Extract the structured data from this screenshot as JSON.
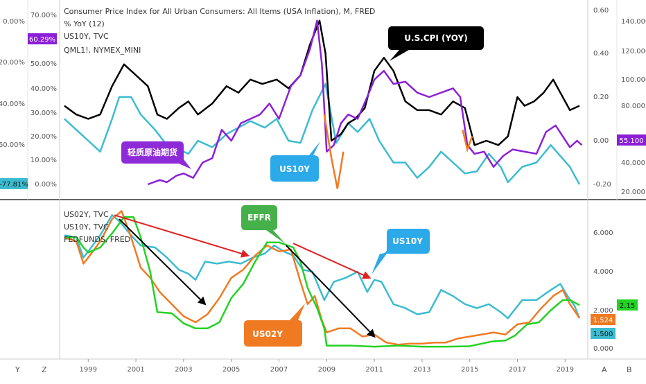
{
  "top_panel": {
    "legend": [
      "Consumer Price Index for All Urban Consumers: All Items (USA Inflation), M, FRED",
      "% YoY (12)",
      "US10Y, TVC",
      "QML1!, NYMEX_MINI"
    ],
    "left_axis1_ticks": [
      "0.00%",
      "-20.00%",
      "-40.00%",
      "-60.00%"
    ],
    "left_axis2_ticks": [
      "70.00%",
      "60.00%",
      "50.00%",
      "40.00%",
      "30.00%",
      "20.00%",
      "10.00%",
      "0.00%"
    ],
    "right_axis1_ticks": [
      "0.60",
      "0.40",
      "0.20",
      "0.00",
      "-0.20"
    ],
    "right_axis2_ticks": [
      "140.000",
      "120.000",
      "100.000",
      "80.000",
      "60.000",
      "40.000",
      "20.000"
    ],
    "badges": {
      "left_purple": "60.29%",
      "left_cyan": "-77.81%",
      "right_purple": "55.100"
    },
    "callouts": {
      "cpi": "U.S.CPI  (YOY)",
      "oil": "轻质原油期货",
      "us10y": "US10Y"
    }
  },
  "bottom_panel": {
    "legend": [
      "US02Y, TVC",
      "US10Y, TVC",
      "FEDFUNDS, FRED"
    ],
    "right_axis_ticks": [
      "6.000",
      "4.000",
      "2.000",
      "0.000"
    ],
    "badges": {
      "green": "2.15",
      "orange": "1.524",
      "cyan": "1.500"
    },
    "callouts": {
      "effr": "EFFR",
      "us10y": "US10Y",
      "us02y": "US02Y"
    }
  },
  "x_axis": {
    "labels": [
      "1999",
      "2001",
      "2003",
      "2005",
      "2007",
      "2009",
      "2011",
      "2013",
      "2015",
      "2017",
      "2019"
    ]
  },
  "corner_labels": {
    "bottom_left_y": "Y",
    "bottom_left_z": "Z",
    "bottom_right_a": "A",
    "bottom_right_b": "B"
  },
  "colors": {
    "us10y": "#3bbcd0",
    "us02y": "#f07a22",
    "fedfunds": "#22d322",
    "cpi": "#000000",
    "oil": "#8b1fd8",
    "trend_red": "#e02020"
  },
  "chart_data": [
    {
      "type": "line",
      "title": "Consumer Price Index for All Urban Consumers: All Items (USA Inflation), M, FRED",
      "ylim_right": [
        -0.25,
        0.62
      ],
      "series": [
        {
          "name": "US10Y, TVC",
          "x": [
            1998.0,
            1998.5,
            1999.0,
            1999.5,
            2000.0,
            2000.3,
            2000.8,
            2001.2,
            2001.8,
            2002.3,
            2002.8,
            2003.2,
            2003.6,
            2004.2,
            2004.8,
            2005.3,
            2005.8,
            2006.4,
            2006.9,
            2007.4,
            2007.9,
            2008.4,
            2008.95,
            2009.4,
            2009.9,
            2010.3,
            2010.8,
            2011.2,
            2011.8,
            2012.3,
            2012.8,
            2013.3,
            2013.8,
            2014.3,
            2014.8,
            2015.3,
            2015.8,
            2016.3,
            2016.6,
            2017.2,
            2017.8,
            2018.4,
            2018.8,
            2019.2,
            2019.6
          ],
          "values": [
            0.1,
            0.05,
            0.0,
            -0.05,
            0.1,
            0.2,
            0.2,
            0.12,
            0.05,
            -0.02,
            -0.04,
            -0.06,
            0.0,
            -0.03,
            0.03,
            0.06,
            0.09,
            0.06,
            0.1,
            0.0,
            -0.01,
            0.14,
            0.26,
            -0.01,
            0.08,
            0.04,
            0.1,
            0.0,
            -0.1,
            -0.1,
            -0.17,
            -0.12,
            -0.05,
            -0.1,
            -0.15,
            -0.14,
            -0.06,
            -0.12,
            -0.19,
            -0.12,
            -0.1,
            -0.02,
            -0.07,
            -0.12,
            -0.2
          ]
        },
        {
          "name": "% YoY (12)",
          "x": [
            1998.0,
            1998.5,
            1999.0,
            1999.5,
            2000.0,
            2000.5,
            2001.0,
            2001.5,
            2001.9,
            2002.3,
            2002.8,
            2003.2,
            2003.6,
            2004.2,
            2004.8,
            2005.3,
            2005.8,
            2006.3,
            2006.9,
            2007.4,
            2007.9,
            2008.3,
            2008.7,
            2008.95,
            2009.2,
            2009.6,
            2009.9,
            2010.2,
            2010.6,
            2011.0,
            2011.4,
            2011.8,
            2012.3,
            2012.8,
            2013.3,
            2013.8,
            2014.3,
            2014.8,
            2015.2,
            2015.7,
            2016.2,
            2016.6,
            2017.0,
            2017.3,
            2017.7,
            2018.1,
            2018.5,
            2018.8,
            2019.2,
            2019.6
          ],
          "values": [
            0.16,
            0.12,
            0.1,
            0.12,
            0.25,
            0.35,
            0.3,
            0.25,
            0.12,
            0.1,
            0.15,
            0.18,
            0.12,
            0.17,
            0.25,
            0.22,
            0.28,
            0.26,
            0.28,
            0.24,
            0.3,
            0.44,
            0.55,
            0.4,
            0.0,
            0.03,
            0.08,
            0.1,
            0.15,
            0.32,
            0.38,
            0.32,
            0.18,
            0.14,
            0.14,
            0.12,
            0.18,
            0.15,
            -0.02,
            0.0,
            -0.02,
            0.02,
            0.2,
            0.16,
            0.18,
            0.22,
            0.28,
            0.22,
            0.14,
            0.16
          ]
        },
        {
          "name": "QML1!, NYMEX_MINI",
          "x": [
            2001.5,
            2002.0,
            2002.3,
            2002.7,
            2003.0,
            2003.4,
            2003.8,
            2004.2,
            2004.6,
            2005.0,
            2005.4,
            2005.8,
            2006.2,
            2006.6,
            2007.0,
            2007.5,
            2007.9,
            2008.3,
            2008.6,
            2008.8,
            2009.0,
            2009.3,
            2009.6,
            2009.9,
            2010.3,
            2010.7,
            2011.0,
            2011.4,
            2011.8,
            2012.3,
            2012.8,
            2013.3,
            2013.8,
            2014.3,
            2014.6,
            2014.9,
            2015.2,
            2015.6,
            2016.0,
            2016.4,
            2016.8,
            2017.3,
            2017.8,
            2018.2,
            2018.6,
            2018.9,
            2019.2,
            2019.5,
            2019.7
          ],
          "values": [
            -0.2,
            -0.18,
            -0.19,
            -0.16,
            -0.15,
            -0.17,
            -0.1,
            -0.08,
            0.05,
            0.0,
            0.08,
            0.1,
            0.12,
            0.17,
            0.1,
            0.25,
            0.3,
            0.42,
            0.55,
            0.35,
            -0.05,
            -0.02,
            0.08,
            0.12,
            0.1,
            0.2,
            0.28,
            0.32,
            0.26,
            0.27,
            0.22,
            0.2,
            0.22,
            0.24,
            0.2,
            -0.02,
            -0.06,
            -0.05,
            -0.12,
            -0.07,
            -0.04,
            -0.05,
            -0.06,
            0.04,
            0.07,
            0.02,
            -0.03,
            0.0,
            -0.02
          ]
        }
      ]
    },
    {
      "type": "line",
      "legend": [
        "US02Y, TVC",
        "US10Y, TVC",
        "FEDFUNDS, FRED"
      ],
      "ylim": [
        -0.3,
        7.2
      ],
      "series": [
        {
          "name": "US10Y, TVC",
          "x": [
            1998.0,
            1998.5,
            1998.8,
            1999.0,
            1999.5,
            2000.0,
            2000.3,
            2000.8,
            2001.2,
            2001.8,
            2002.3,
            2002.8,
            2003.2,
            2003.5,
            2003.9,
            2004.4,
            2004.9,
            2005.4,
            2005.9,
            2006.4,
            2006.8,
            2007.2,
            2007.6,
            2008.0,
            2008.4,
            2008.9,
            2009.3,
            2009.8,
            2010.3,
            2010.7,
            2011.0,
            2011.3,
            2011.8,
            2012.3,
            2012.8,
            2013.3,
            2013.8,
            2014.3,
            2014.8,
            2015.3,
            2015.8,
            2016.3,
            2016.6,
            2017.2,
            2017.8,
            2018.4,
            2018.8,
            2019.1,
            2019.4,
            2019.6
          ],
          "values": [
            5.6,
            5.5,
            4.5,
            4.8,
            5.6,
            6.6,
            6.3,
            5.6,
            5.1,
            5.0,
            4.5,
            3.9,
            3.7,
            3.4,
            4.3,
            4.2,
            4.3,
            4.2,
            4.5,
            4.7,
            5.1,
            4.8,
            4.6,
            3.9,
            3.8,
            2.4,
            3.3,
            3.5,
            3.8,
            2.8,
            3.4,
            3.3,
            2.2,
            2.0,
            1.7,
            1.8,
            2.9,
            2.6,
            2.2,
            2.0,
            2.2,
            1.8,
            1.5,
            2.4,
            2.4,
            2.9,
            3.2,
            2.6,
            2.1,
            1.5
          ]
        },
        {
          "name": "US02Y, TVC",
          "x": [
            1998.0,
            1998.5,
            1998.8,
            1999.0,
            1999.5,
            2000.0,
            2000.4,
            2000.8,
            2001.2,
            2001.6,
            2002.0,
            2002.5,
            2003.0,
            2003.5,
            2004.0,
            2004.5,
            2005.0,
            2005.5,
            2006.0,
            2006.5,
            2007.0,
            2007.5,
            2007.9,
            2008.2,
            2008.5,
            2008.8,
            2009.0,
            2009.5,
            2010.0,
            2010.5,
            2011.0,
            2011.5,
            2012.0,
            2012.5,
            2013.0,
            2013.5,
            2014.0,
            2014.5,
            2015.0,
            2015.5,
            2016.0,
            2016.5,
            2017.0,
            2017.5,
            2018.0,
            2018.5,
            2018.9,
            2019.2,
            2019.6
          ],
          "values": [
            5.5,
            5.3,
            4.2,
            4.5,
            5.3,
            6.4,
            6.8,
            5.5,
            4.0,
            3.5,
            2.8,
            2.2,
            1.6,
            1.3,
            1.7,
            2.5,
            3.5,
            3.9,
            4.6,
            5.1,
            4.8,
            4.9,
            3.3,
            2.2,
            2.6,
            1.4,
            0.8,
            1.0,
            1.0,
            0.6,
            0.7,
            0.3,
            0.2,
            0.25,
            0.25,
            0.3,
            0.3,
            0.5,
            0.6,
            0.7,
            0.8,
            0.7,
            1.2,
            1.3,
            2.0,
            2.6,
            2.9,
            2.2,
            1.52
          ]
        },
        {
          "name": "FEDFUNDS, FRED",
          "x": [
            1998.0,
            1998.5,
            1998.8,
            1999.0,
            1999.5,
            2000.0,
            2000.5,
            2000.9,
            2001.2,
            2001.6,
            2001.9,
            2002.5,
            2003.0,
            2003.5,
            2004.0,
            2004.5,
            2005.0,
            2005.5,
            2006.0,
            2006.5,
            2007.0,
            2007.6,
            2007.9,
            2008.2,
            2008.6,
            2008.9,
            2009.0,
            2010.0,
            2011.0,
            2012.0,
            2013.0,
            2014.0,
            2015.0,
            2015.9,
            2016.5,
            2016.9,
            2017.4,
            2017.9,
            2018.4,
            2018.9,
            2019.2,
            2019.6
          ],
          "values": [
            5.5,
            5.5,
            5.0,
            4.75,
            5.0,
            5.7,
            6.5,
            6.5,
            5.5,
            3.8,
            1.8,
            1.75,
            1.25,
            1.0,
            1.0,
            1.3,
            2.5,
            3.2,
            4.3,
            5.25,
            5.25,
            5.0,
            4.3,
            3.0,
            2.0,
            1.0,
            0.15,
            0.15,
            0.1,
            0.15,
            0.1,
            0.1,
            0.12,
            0.35,
            0.4,
            0.65,
            1.2,
            1.3,
            1.9,
            2.4,
            2.4,
            2.15
          ]
        }
      ]
    }
  ]
}
